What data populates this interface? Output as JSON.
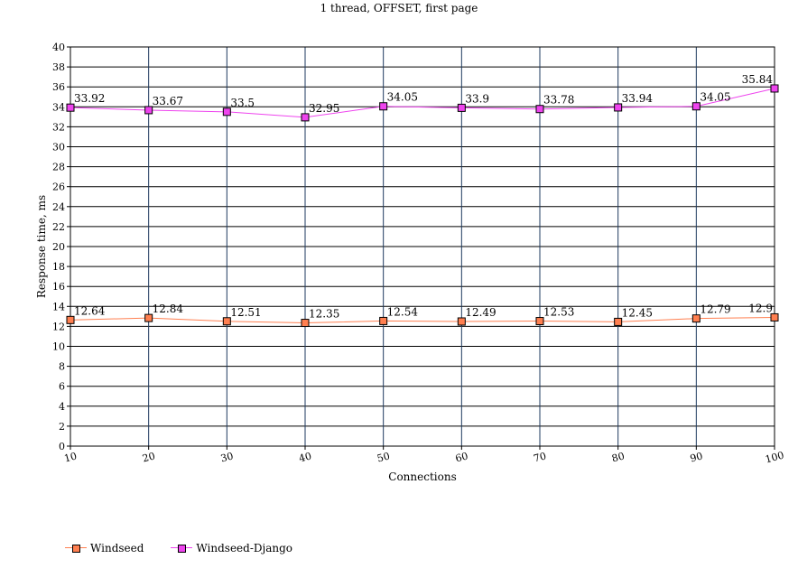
{
  "chart_data": {
    "type": "line",
    "title": "1 thread, OFFSET, first page",
    "xlabel": "Connections",
    "ylabel": "Response time, ms",
    "categories": [
      "10",
      "20",
      "30",
      "40",
      "50",
      "60",
      "70",
      "80",
      "90",
      "100"
    ],
    "ylim": [
      0,
      40
    ],
    "ytick_step": 2,
    "grid": true,
    "legend_position": "bottom-left",
    "series": [
      {
        "name": "Windseed",
        "color": "#ff7f50",
        "values": [
          12.64,
          12.84,
          12.51,
          12.35,
          12.54,
          12.49,
          12.53,
          12.45,
          12.79,
          12.9
        ],
        "labels": [
          "12.64",
          "12.84",
          "12.51",
          "12.35",
          "12.54",
          "12.49",
          "12.53",
          "12.45",
          "12.79",
          "12.9"
        ]
      },
      {
        "name": "Windseed-Django",
        "color": "#ee44ee",
        "values": [
          33.92,
          33.67,
          33.5,
          32.95,
          34.05,
          33.9,
          33.78,
          33.94,
          34.05,
          35.84
        ],
        "labels": [
          "33.92",
          "33.67",
          "33.5",
          "32.95",
          "34.05",
          "33.9",
          "33.78",
          "33.94",
          "34.05",
          "35.84"
        ]
      }
    ]
  }
}
